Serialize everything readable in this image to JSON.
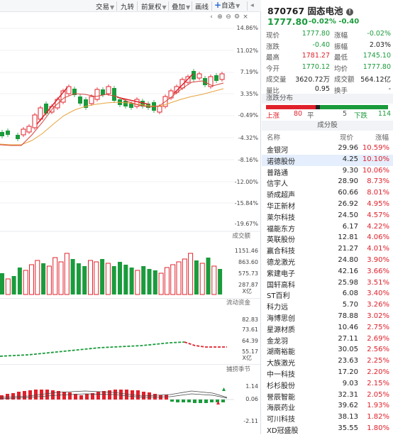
{
  "toolbar": {
    "items": [
      "交易",
      "九转",
      "前复权",
      "叠加",
      "画线",
      "自选"
    ],
    "has_caret": [
      true,
      false,
      true,
      true,
      false,
      true
    ],
    "icons": [
      "left-arrow-icon",
      "plus-circle-icon",
      "minus-circle-icon",
      "gear-icon",
      "close-icon"
    ]
  },
  "chart": {
    "price_axis": [
      "14.86%",
      "11.02%",
      "7.19%",
      "3.35%",
      "-0.49%",
      "-4.32%",
      "-8.16%",
      "-12.00%",
      "-15.84%",
      "-19.67%"
    ],
    "volume_title": "成交额",
    "volume_axis": [
      "1151.46",
      "863.60",
      "575.73",
      "287.87",
      "X亿"
    ],
    "flow_title": "流动资金",
    "flow_axis": [
      "82.83",
      "73.61",
      "64.39",
      "55.17",
      "X亿"
    ],
    "macd_title": "捕捞季节",
    "macd_axis": [
      "1.14",
      "0.06",
      "-2.11"
    ]
  },
  "quote": {
    "code": "870767",
    "name": "固态电池",
    "price": "1777.80",
    "change": "-0.02%",
    "change_abs": "-0.40",
    "rows": [
      {
        "k1": "现价",
        "v1": "1777.80",
        "c1": "green",
        "k2": "涨幅",
        "v2": "-0.02%",
        "c2": "green"
      },
      {
        "k1": "涨跌",
        "v1": "-0.40",
        "c1": "green",
        "k2": "振幅",
        "v2": "2.03%",
        "c2": "dark"
      },
      {
        "k1": "最高",
        "v1": "1781.27",
        "c1": "red",
        "k2": "最低",
        "v2": "1745.10",
        "c2": "green"
      },
      {
        "k1": "今开",
        "v1": "1770.12",
        "c1": "green",
        "k2": "均价",
        "v2": "1777.80",
        "c2": "green"
      },
      {
        "k1": "成交量",
        "v1": "3620.72万",
        "c1": "dark",
        "k2": "成交额",
        "v2": "564.12亿",
        "c2": "dark"
      },
      {
        "k1": "量比",
        "v1": "0.95",
        "c1": "dark",
        "k2": "换手",
        "v2": "-",
        "c2": "dark"
      }
    ]
  },
  "distribution": {
    "title": "涨跌分布",
    "up_label": "上涨",
    "up_count": "80",
    "flat_label": "平",
    "flat_count": "5",
    "down_label": "下跌",
    "down_count": "114"
  },
  "constituents": {
    "title": "成分股",
    "col_name": "名称",
    "col_price": "现价",
    "col_change": "涨幅",
    "rows": [
      {
        "name": "金银河",
        "price": "29.96",
        "change": "10.59%"
      },
      {
        "name": "诺德股份",
        "price": "4.25",
        "change": "10.10%"
      },
      {
        "name": "普路通",
        "price": "9.30",
        "change": "10.06%"
      },
      {
        "name": "信宇人",
        "price": "28.90",
        "change": "8.73%"
      },
      {
        "name": "骄成超声",
        "price": "60.66",
        "change": "8.01%"
      },
      {
        "name": "华正新材",
        "price": "26.92",
        "change": "4.95%"
      },
      {
        "name": "莱尔科技",
        "price": "24.50",
        "change": "4.57%"
      },
      {
        "name": "福能东方",
        "price": "6.17",
        "change": "4.22%"
      },
      {
        "name": "英联股份",
        "price": "12.81",
        "change": "4.06%"
      },
      {
        "name": "赢合科技",
        "price": "21.27",
        "change": "4.01%"
      },
      {
        "name": "德龙激光",
        "price": "24.80",
        "change": "3.90%"
      },
      {
        "name": "紫建电子",
        "price": "42.16",
        "change": "3.66%"
      },
      {
        "name": "国轩高科",
        "price": "25.98",
        "change": "3.51%"
      },
      {
        "name": "ST百利",
        "price": "6.08",
        "change": "3.40%"
      },
      {
        "name": "科力远",
        "price": "5.70",
        "change": "3.26%"
      },
      {
        "name": "海博思创",
        "price": "78.88",
        "change": "3.02%"
      },
      {
        "name": "星源材质",
        "price": "10.46",
        "change": "2.75%"
      },
      {
        "name": "金龙羽",
        "price": "27.11",
        "change": "2.69%"
      },
      {
        "name": "湖南裕能",
        "price": "30.05",
        "change": "2.56%"
      },
      {
        "name": "大族激光",
        "price": "23.63",
        "change": "2.25%"
      },
      {
        "name": "中一科技",
        "price": "17.20",
        "change": "2.20%"
      },
      {
        "name": "杉杉股份",
        "price": "9.03",
        "change": "2.15%"
      },
      {
        "name": "誉辰智能",
        "price": "32.31",
        "change": "2.05%"
      },
      {
        "name": "海辰药业",
        "price": "39.62",
        "change": "1.93%"
      },
      {
        "name": "可川科技",
        "price": "38.13",
        "change": "1.82%"
      },
      {
        "name": "XD冠盛股",
        "price": "35.55",
        "change": "1.80%"
      }
    ]
  }
}
